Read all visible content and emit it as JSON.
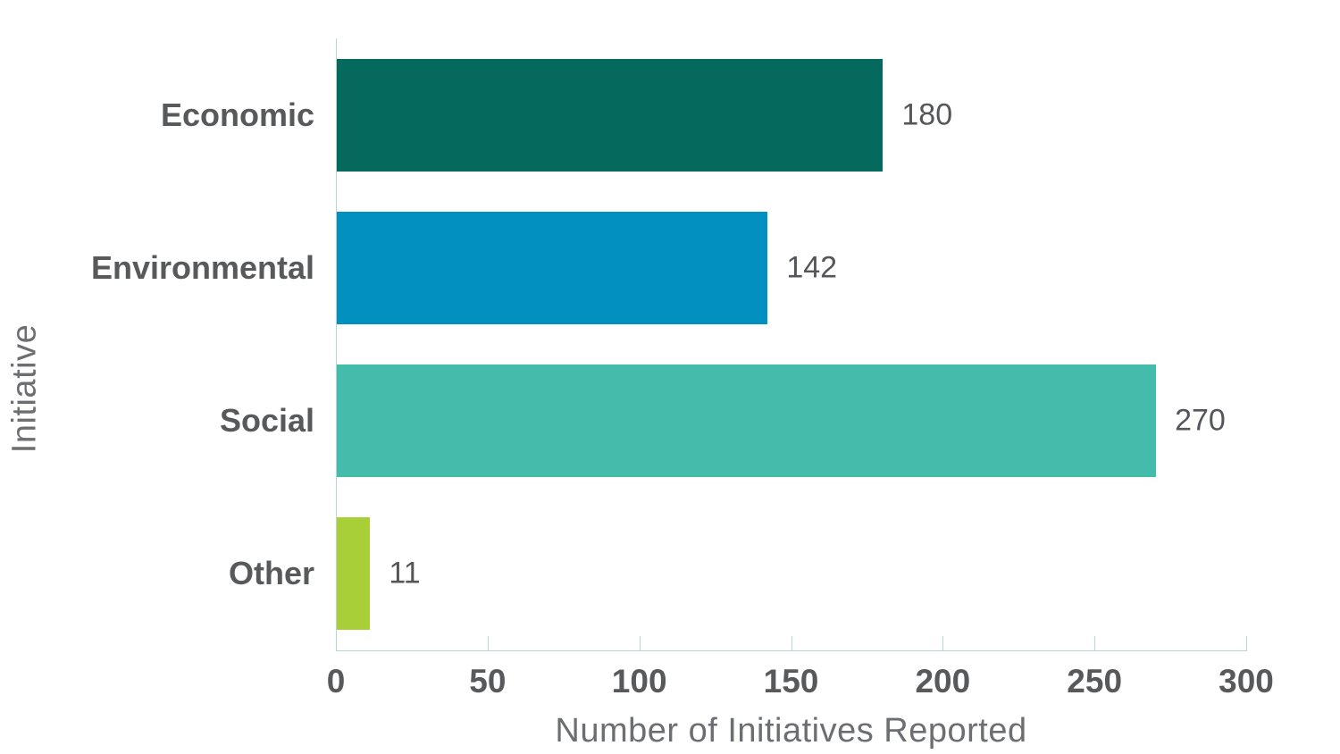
{
  "chart_data": {
    "type": "bar",
    "orientation": "horizontal",
    "categories": [
      "Economic",
      "Environmental",
      "Social",
      "Other"
    ],
    "values": [
      180,
      142,
      270,
      11
    ],
    "data_labels": [
      "180",
      "142",
      "270",
      "11"
    ],
    "bar_colors": [
      "#05695E",
      "#0290C0",
      "#43BCAC",
      "#A9CF38"
    ],
    "xlabel": "Number of Initiatives Reported",
    "ylabel": "Initiative",
    "xlim": [
      0,
      300
    ],
    "xticks": [
      0,
      50,
      100,
      150,
      200,
      250,
      300
    ],
    "xtick_labels": [
      "0",
      "50",
      "100",
      "150",
      "200",
      "250",
      "300"
    ],
    "grid": false,
    "legend": false,
    "colors": {
      "axis_line": "#B7D5D3",
      "category_label": "#58595B",
      "tick_label": "#58595B",
      "value_label": "#54565B",
      "axis_title": "#6D6E71",
      "background": "#FFFFFF"
    }
  }
}
